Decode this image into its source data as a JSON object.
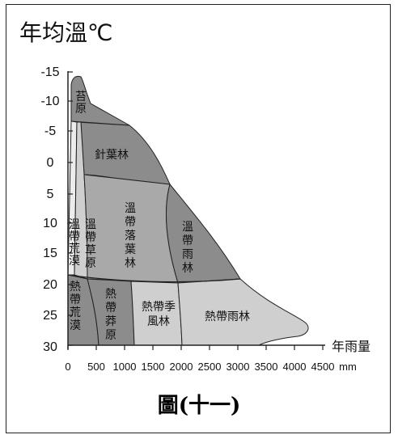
{
  "figure": {
    "title": "年均溫℃",
    "x_axis_label": "年雨量",
    "x_unit": "mm",
    "caption": "圖(十一)",
    "y_ticks": [
      "-15",
      "-10",
      "-5",
      "0",
      "5",
      "10",
      "15",
      "20",
      "25",
      "30"
    ],
    "x_ticks": [
      "0",
      "500",
      "1000",
      "1500",
      "2000",
      "2500",
      "3000",
      "3500",
      "4000",
      "4500"
    ]
  },
  "biomes": {
    "tundra": "苔原",
    "coniferous": "針葉林",
    "temperate_deciduous": "溫帶落葉林",
    "temperate_rain": "溫帶雨林",
    "temperate_desert": "溫帶荒漠",
    "temperate_grassland": "溫帶草原",
    "tropical_desert": "熱帶荒漠",
    "tropical_savanna": "熱帶莽原",
    "tropical_monsoon": "熱帶季風林",
    "tropical_rain": "熱帶雨林"
  },
  "colors": {
    "dark": "#8c8c8c",
    "mid": "#a9a9a9",
    "light": "#cfcfcf",
    "lightest": "#ececec",
    "border": "#222222"
  }
}
